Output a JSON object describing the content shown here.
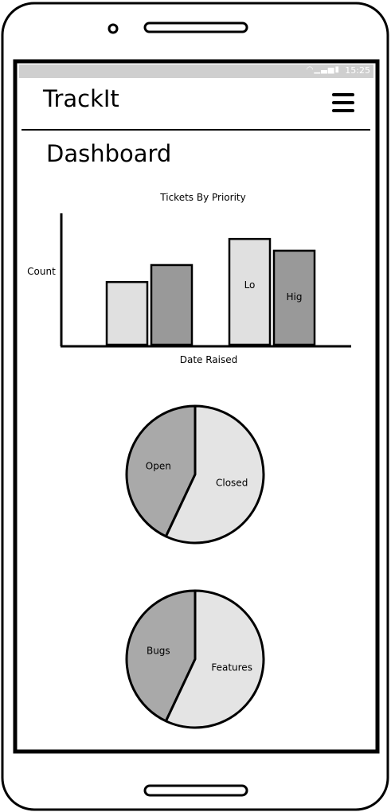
{
  "status_bar": {
    "time": "15:25",
    "icons": "wifi-icon signal-icon battery-icon"
  },
  "header": {
    "title": "TrackIt",
    "menu_icon": "hamburger-menu-icon"
  },
  "page": {
    "title": "Dashboard"
  },
  "chart_data": [
    {
      "type": "bar",
      "title": "Tickets By Priority",
      "xlabel": "Date Raised",
      "ylabel": "Count",
      "categories": [
        "",
        ""
      ],
      "series": [
        {
          "name": "Lo",
          "values": [
            48,
            81
          ],
          "color": "#e0e0e0"
        },
        {
          "name": "Hig",
          "values": [
            61,
            72
          ],
          "color": "#999999"
        }
      ],
      "ylim": [
        0,
        100
      ]
    },
    {
      "type": "pie",
      "labels": [
        "Open",
        "Closed"
      ],
      "values": [
        43,
        57
      ],
      "colors": [
        "#a9a9a9",
        "#e4e4e4"
      ]
    },
    {
      "type": "pie",
      "labels": [
        "Bugs",
        "Features"
      ],
      "values": [
        43,
        57
      ],
      "colors": [
        "#a9a9a9",
        "#e4e4e4"
      ]
    }
  ]
}
